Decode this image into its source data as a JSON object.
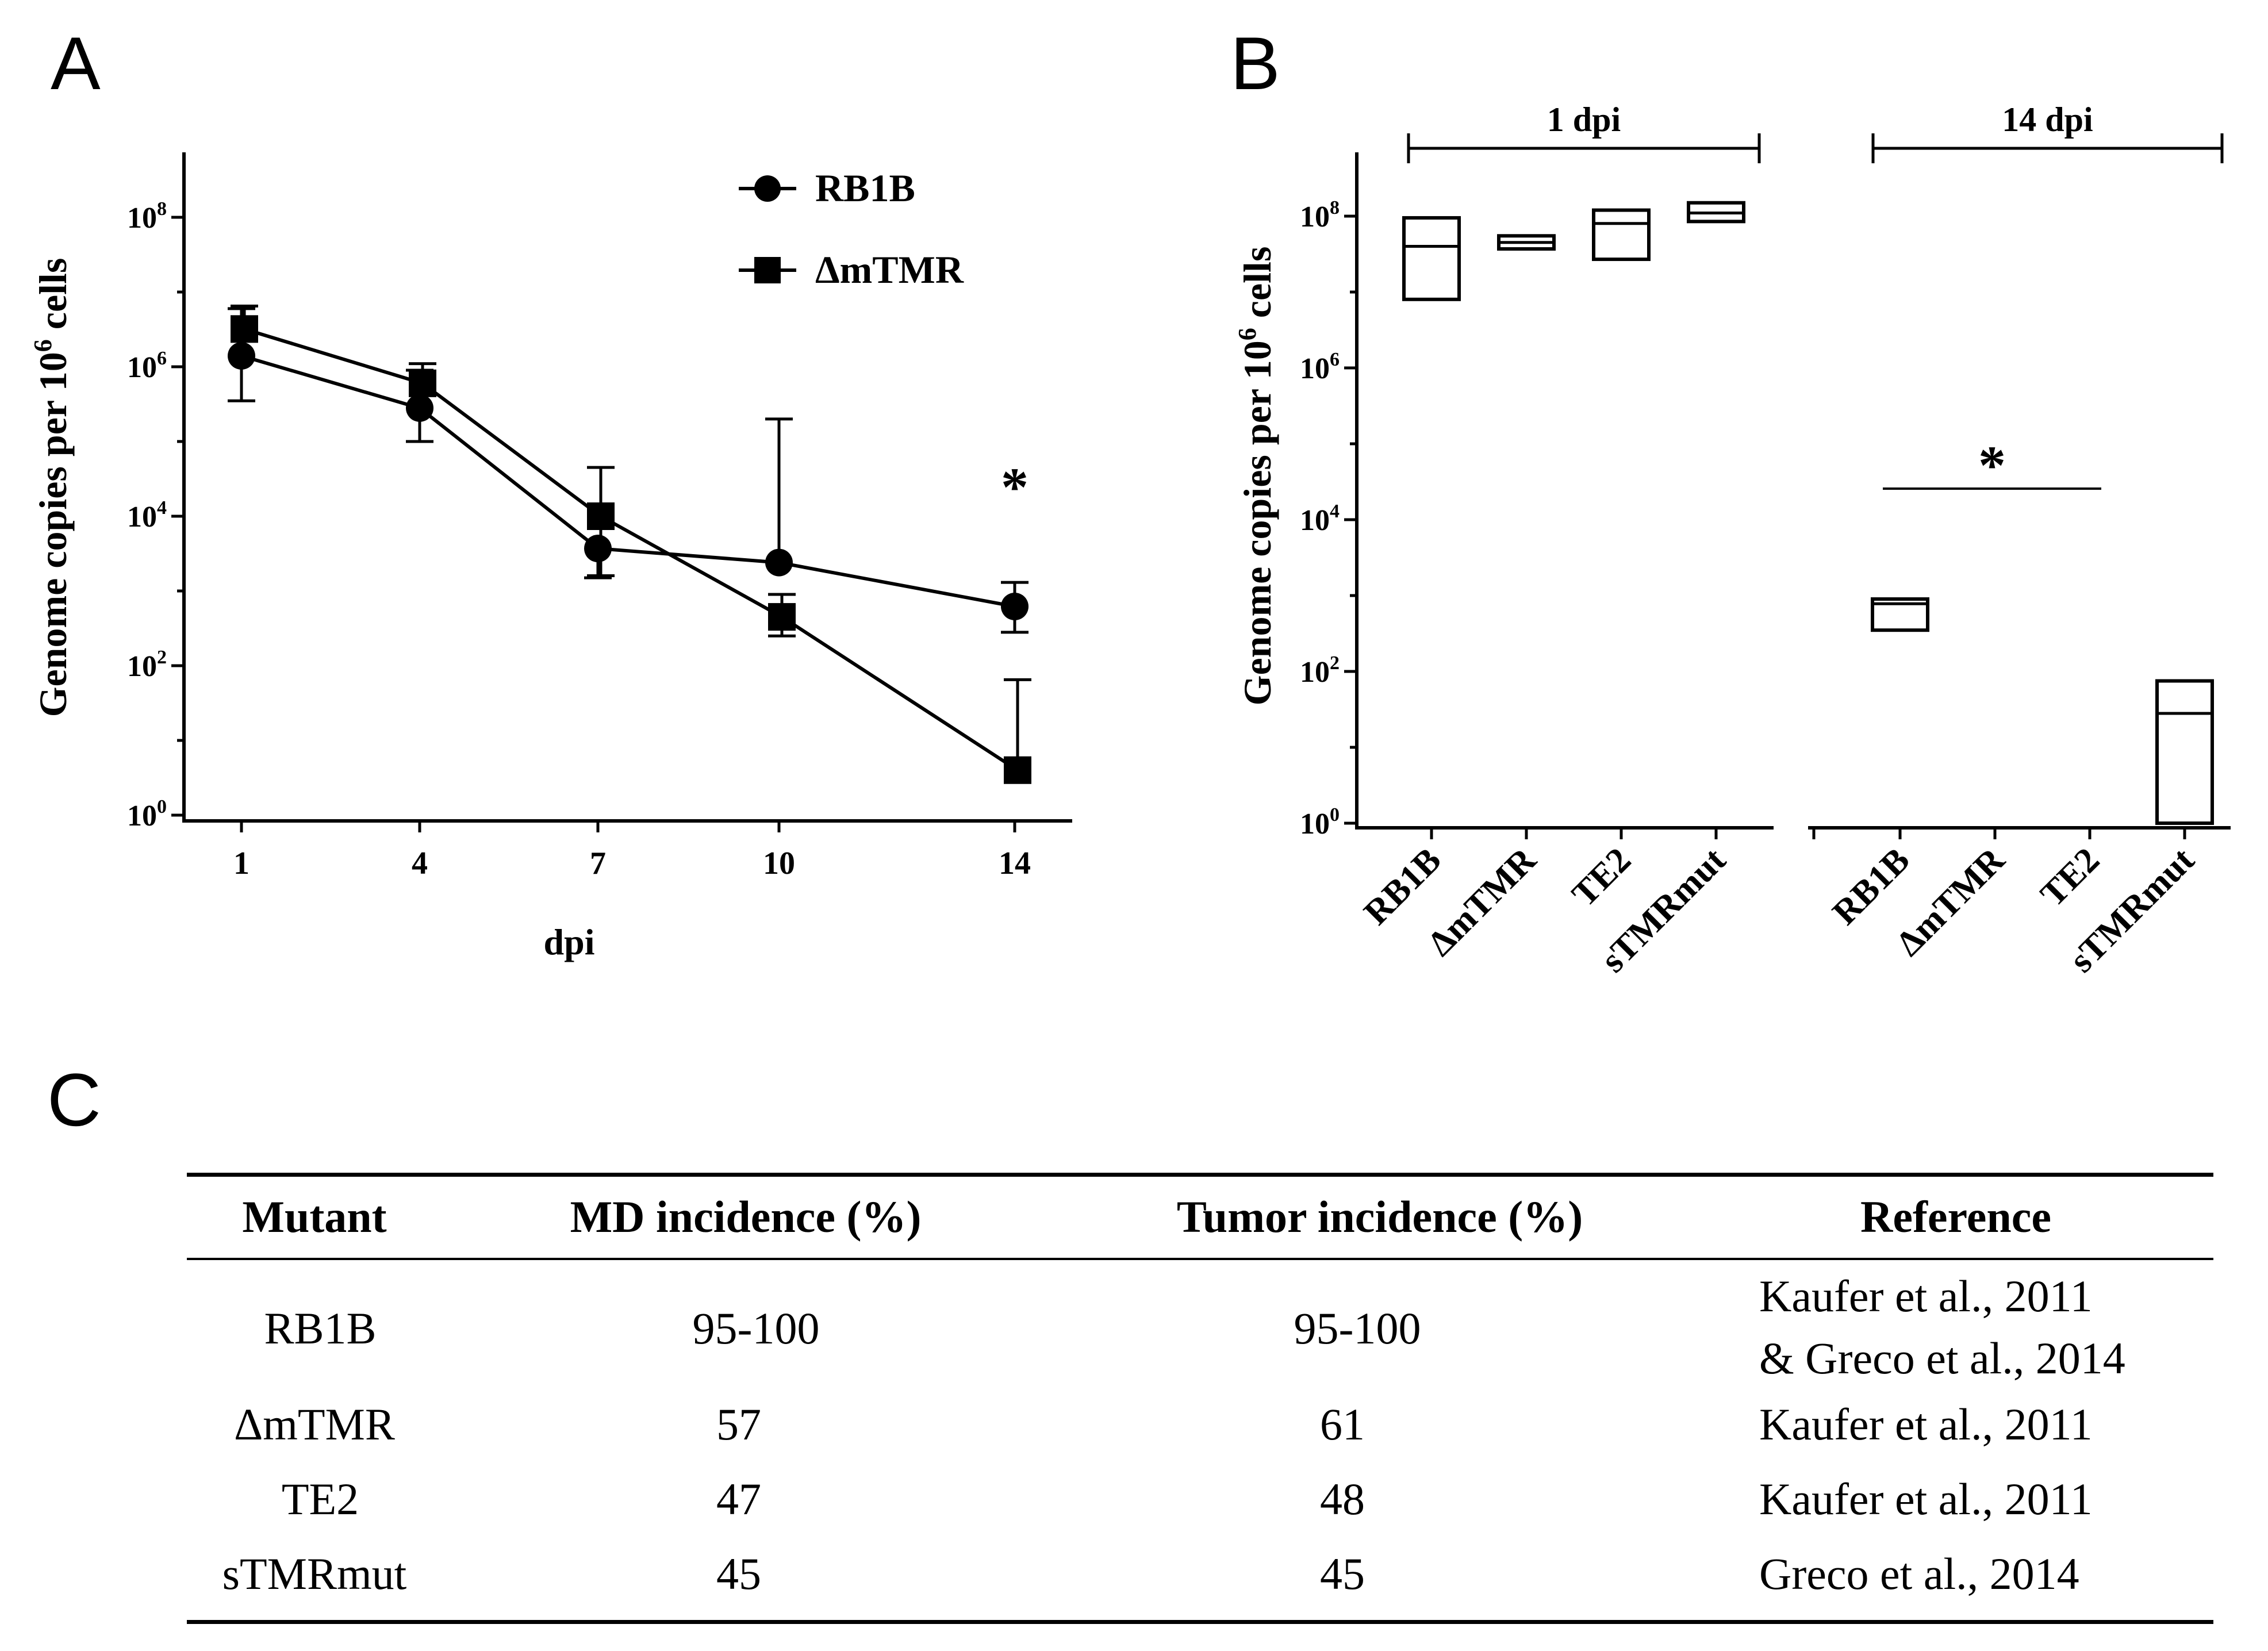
{
  "panels": {
    "a": "A",
    "b": "B",
    "c": "C"
  },
  "chart_data": [
    {
      "type": "line",
      "panel": "A",
      "title": "",
      "xlabel": "dpi",
      "ylabel": "Genome copies per 10^6 cells",
      "ylabel_base": "Genome copies per 10",
      "ylabel_exp": "6",
      "ylabel_tail": " cells",
      "yscale": "log10",
      "ylim": [
        1,
        1000000000.0
      ],
      "x": [
        1,
        4,
        7,
        10,
        14
      ],
      "x_ticks": [
        "1",
        "4",
        "7",
        "10",
        "14"
      ],
      "y_ticks": [
        {
          "base": "10",
          "exp": "0",
          "value": 1
        },
        {
          "base": "10",
          "exp": "2",
          "value": 100
        },
        {
          "base": "10",
          "exp": "4",
          "value": 10000
        },
        {
          "base": "10",
          "exp": "6",
          "value": 1000000
        },
        {
          "base": "10",
          "exp": "8",
          "value": 100000000
        }
      ],
      "series": [
        {
          "name": "RB1B",
          "marker": "circle",
          "values": [
            1400000,
            280000,
            3700,
            2400,
            620
          ],
          "err_lower": [
            350000,
            100000,
            1500,
            null,
            280
          ],
          "err_upper": [
            6000000,
            900000,
            null,
            200000,
            1300
          ]
        },
        {
          "name": "ΔmTMR",
          "marker": "square",
          "values": [
            3200000,
            600000,
            10000,
            450,
            4
          ],
          "err_lower": [
            null,
            null,
            1600,
            250,
            null
          ],
          "err_upper": [
            6500000,
            1100000,
            45000,
            900,
            65
          ]
        }
      ],
      "annotations": [
        {
          "text": "*",
          "x": 14
        }
      ]
    },
    {
      "type": "box",
      "panel": "B",
      "ylabel_base": "Genome copies per 10",
      "ylabel_exp": "6",
      "ylabel_tail": " cells",
      "yscale": "log10",
      "ylim": [
        1,
        1000000000.0
      ],
      "y_ticks": [
        {
          "base": "10",
          "exp": "0",
          "value": 1
        },
        {
          "base": "10",
          "exp": "2",
          "value": 100
        },
        {
          "base": "10",
          "exp": "4",
          "value": 10000
        },
        {
          "base": "10",
          "exp": "6",
          "value": 1000000
        },
        {
          "base": "10",
          "exp": "8",
          "value": 100000000
        }
      ],
      "groups": [
        {
          "label": "1 dpi",
          "boxes": [
            {
              "category": "RB1B",
              "low": 8000000,
              "median": 40000000,
              "high": 95000000
            },
            {
              "category": "ΔmTMR",
              "low": 37000000,
              "median": 45000000,
              "high": 55000000
            },
            {
              "category": "TE2",
              "low": 27000000,
              "median": 80000000,
              "high": 120000000
            },
            {
              "category": "sTMRmut",
              "low": 85000000,
              "median": 110000000,
              "high": 150000000
            }
          ]
        },
        {
          "label": "14 dpi",
          "boxes": [
            {
              "category": "RB1B",
              "low": 350,
              "median": 780,
              "high": 900
            },
            {
              "category": "ΔmTMR",
              "low": null,
              "median": null,
              "high": null
            },
            {
              "category": "TE2",
              "low": null,
              "median": null,
              "high": null
            },
            {
              "category": "sTMRmut",
              "low": 1,
              "median": 28,
              "high": 75
            }
          ]
        }
      ],
      "annotations": [
        {
          "text": "*"
        }
      ]
    }
  ],
  "table": {
    "headers": [
      "Mutant",
      "MD incidence (%)",
      "Tumor incidence (%)",
      "Reference"
    ],
    "rows": [
      {
        "mutant": "RB1B",
        "md": "95-100",
        "tumor": "95-100",
        "ref1": "Kaufer et al., 2011",
        "ref2": "& Greco et al., 2014"
      },
      {
        "mutant": "ΔmTMR",
        "md": "57",
        "tumor": "61",
        "ref1": "Kaufer et al., 2011"
      },
      {
        "mutant": "TE2",
        "md": "47",
        "tumor": "48",
        "ref1": "Kaufer et al., 2011"
      },
      {
        "mutant": "sTMRmut",
        "md": "45",
        "tumor": "45",
        "ref1": "Greco et al., 2014"
      }
    ]
  }
}
